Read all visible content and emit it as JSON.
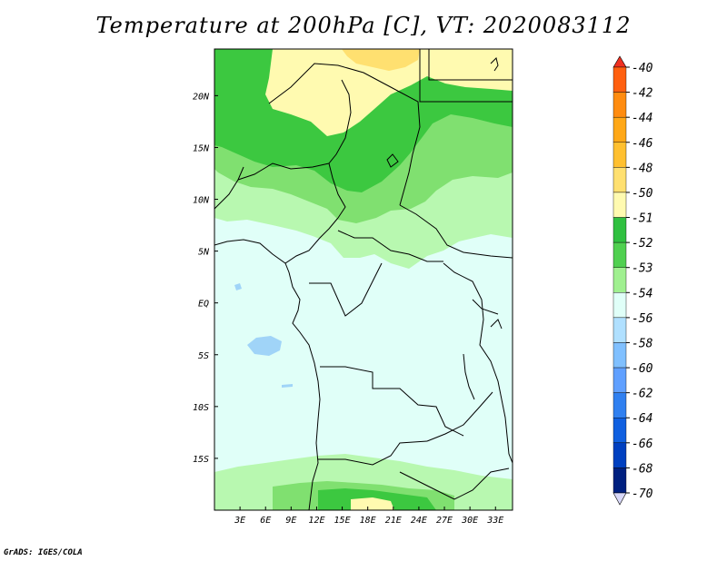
{
  "title": "Temperature at 200hPa [C], VT: 2020083112",
  "credit": "GrADS: IGES/COLA",
  "map": {
    "lon_range": [
      0,
      35
    ],
    "lat_range": [
      -20,
      24.5
    ],
    "x_ticks": [
      "3E",
      "6E",
      "9E",
      "12E",
      "15E",
      "18E",
      "21E",
      "24E",
      "27E",
      "30E",
      "33E"
    ],
    "y_ticks": [
      "20N",
      "15N",
      "10N",
      "5N",
      "EQ",
      "5S",
      "10S",
      "15S"
    ],
    "x_tick_values": [
      3,
      6,
      9,
      12,
      15,
      18,
      21,
      24,
      27,
      30,
      33
    ],
    "y_tick_values": [
      20,
      15,
      10,
      5,
      0,
      -5,
      -10,
      -15
    ]
  },
  "colorbar": {
    "labels": [
      "-40",
      "-42",
      "-44",
      "-46",
      "-48",
      "-50",
      "-51",
      "-52",
      "-53",
      "-54",
      "-56",
      "-58",
      "-60",
      "-62",
      "-64",
      "-66",
      "-68",
      "-70"
    ],
    "colors": [
      "#f03020",
      "#ff6010",
      "#ff8c10",
      "#ffa818",
      "#ffc030",
      "#ffe070",
      "#fffab0",
      "#30c040",
      "#50d050",
      "#a0f090",
      "#e0fff8",
      "#b0e0ff",
      "#80c0ff",
      "#60a0ff",
      "#3080f0",
      "#1060e0",
      "#0040c0",
      "#002080",
      "#000060"
    ]
  },
  "legend_colors_meaning": "top to bottom warm to cold",
  "fields": {
    "colors": {
      "le_-54": "#e0fff8",
      "-54_-53": "#b8f8b0",
      "-53_-52": "#80e070",
      "-52_-51": "#3cc840",
      "-51_-50": "#fffab0",
      "-50_-48": "#ffe070",
      "-58_-56": "#a0d4f8",
      "coastline": "#000000"
    }
  }
}
